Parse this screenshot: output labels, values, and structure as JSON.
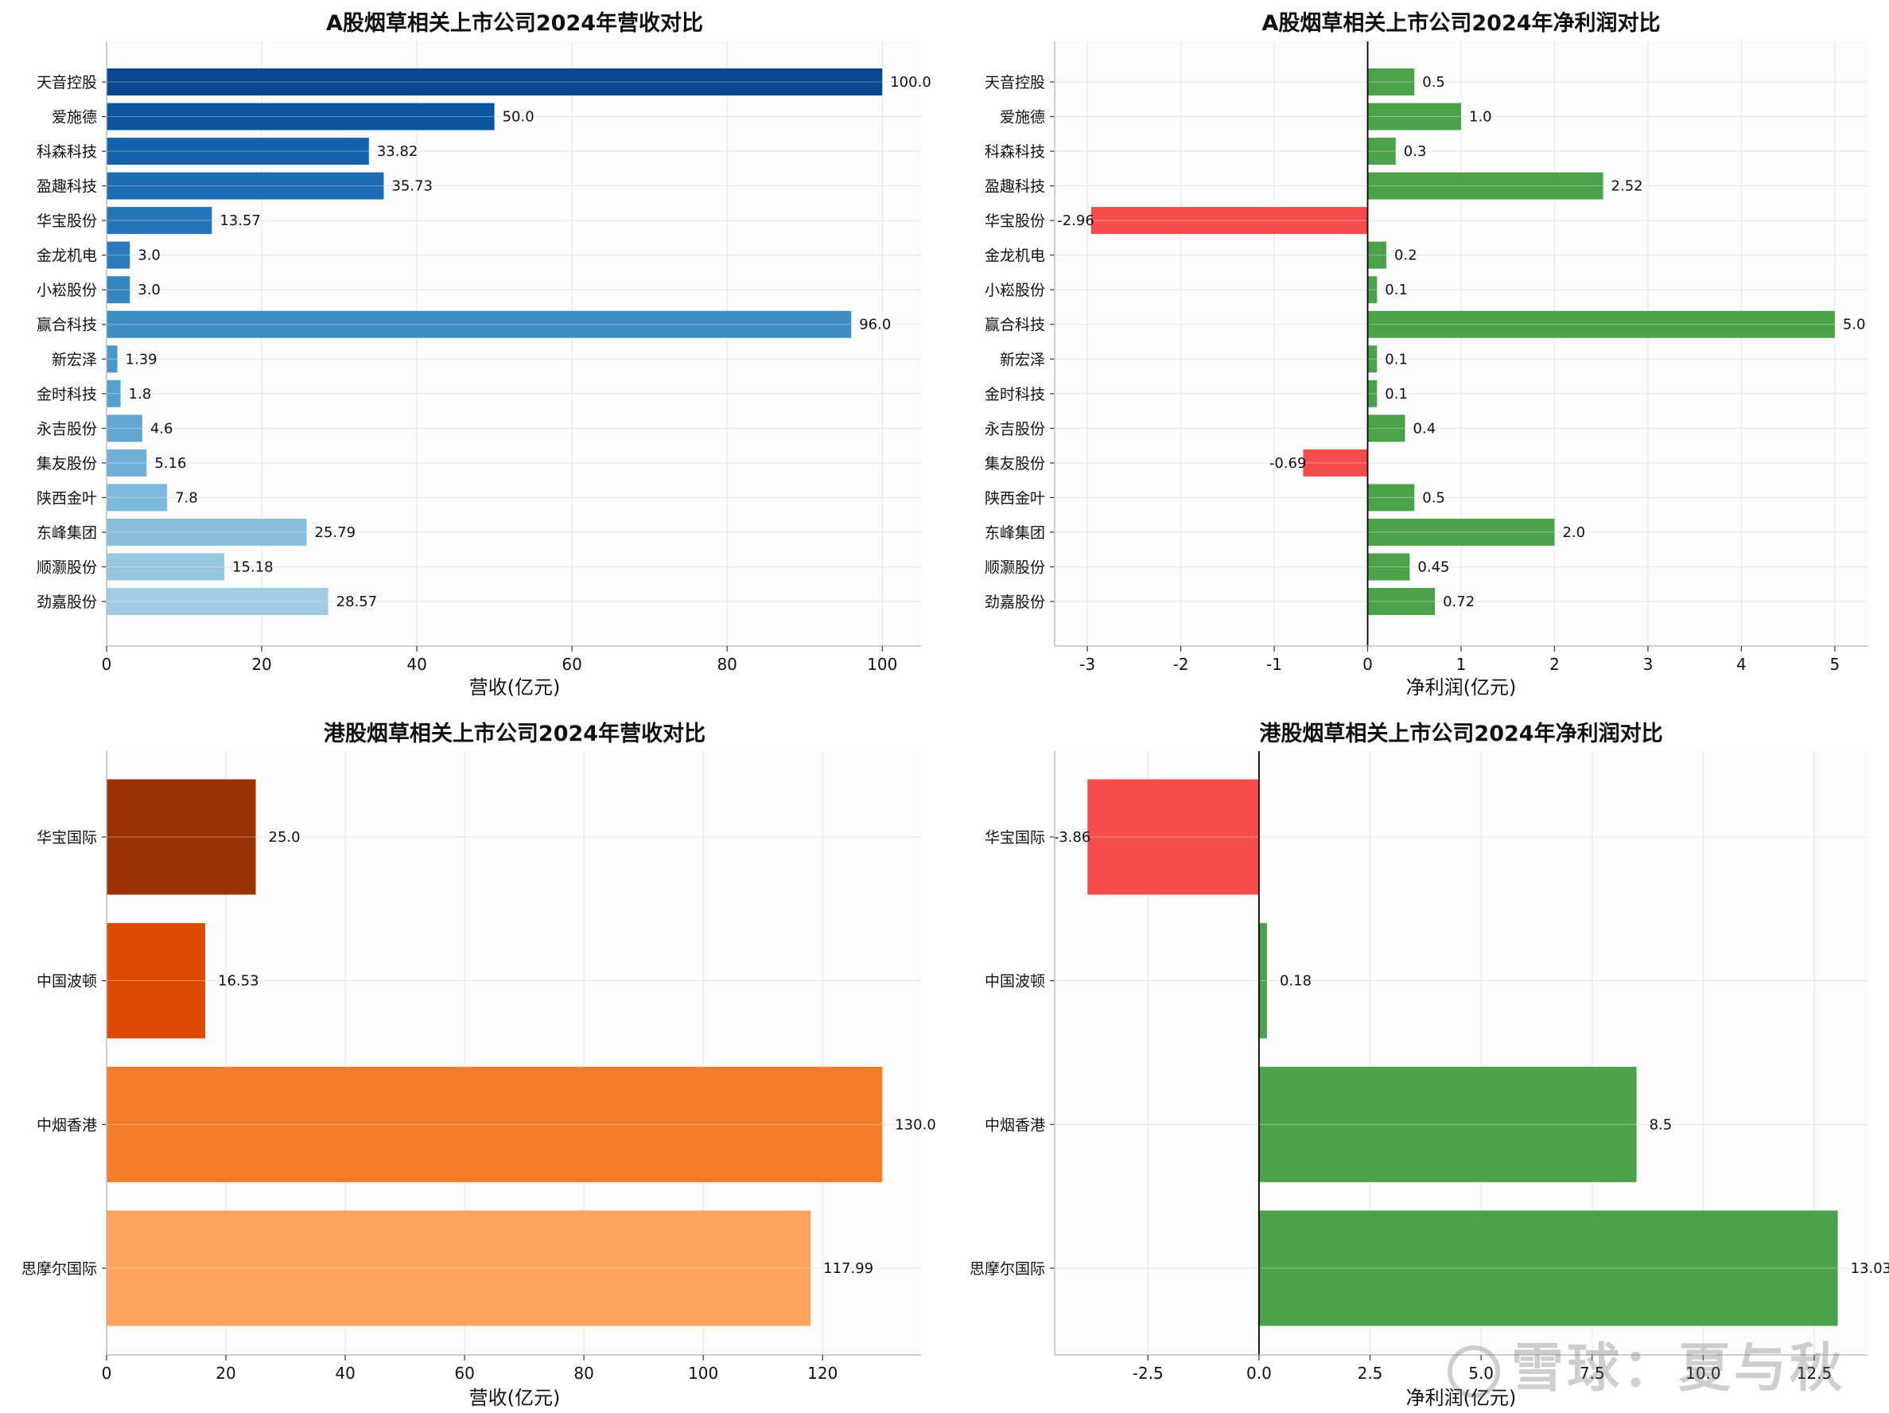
{
  "chart_data": [
    {
      "type": "bar",
      "orientation": "horizontal",
      "title": "A股烟草相关上市公司2024年营收对比",
      "xlabel": "营收(亿元)",
      "categories": [
        "天音控股",
        "爱施德",
        "科森科技",
        "盈趣科技",
        "华宝股份",
        "金龙机电",
        "小崧股份",
        "赢合科技",
        "新宏泽",
        "金时科技",
        "永吉股份",
        "集友股份",
        "陕西金叶",
        "东峰集团",
        "顺灏股份",
        "劲嘉股份"
      ],
      "values": [
        100.0,
        50.0,
        33.82,
        35.73,
        13.57,
        3.0,
        3.0,
        96.0,
        1.39,
        1.8,
        4.6,
        5.16,
        7.8,
        25.79,
        15.18,
        28.57
      ],
      "value_labels": [
        "100.0",
        "50.0",
        "33.82",
        "35.73",
        "13.57",
        "3.0",
        "3.0",
        "96.0",
        "1.39",
        "1.8",
        "4.6",
        "5.16",
        "7.8",
        "25.79",
        "15.18",
        "28.57"
      ],
      "colors": [
        "#08468e",
        "#0c56a0",
        "#1462ab",
        "#1c6cb2",
        "#2373b6",
        "#2b7bba",
        "#3585bf",
        "#3f8ec3",
        "#4a98c9",
        "#56a0ce",
        "#63a8d3",
        "#70b0d7",
        "#7eb8da",
        "#89bfdd",
        "#96c6e0",
        "#a0cbe2"
      ],
      "xlim": [
        0,
        105
      ],
      "xticks": [
        0,
        20,
        40,
        60,
        80,
        100
      ],
      "xtick_labels": [
        "0",
        "20",
        "40",
        "60",
        "80",
        "100"
      ],
      "grid": true
    },
    {
      "type": "bar",
      "orientation": "horizontal",
      "title": "A股烟草相关上市公司2024年净利润对比",
      "xlabel": "净利润(亿元)",
      "categories": [
        "天音控股",
        "爱施德",
        "科森科技",
        "盈趣科技",
        "华宝股份",
        "金龙机电",
        "小崧股份",
        "赢合科技",
        "新宏泽",
        "金时科技",
        "永吉股份",
        "集友股份",
        "陕西金叶",
        "东峰集团",
        "顺灏股份",
        "劲嘉股份"
      ],
      "values": [
        0.5,
        1.0,
        0.3,
        2.52,
        -2.96,
        0.2,
        0.1,
        5.0,
        0.1,
        0.1,
        0.4,
        -0.69,
        0.5,
        2.0,
        0.45,
        0.72
      ],
      "value_labels": [
        "0.5",
        "1.0",
        "0.3",
        "2.52",
        "-2.96",
        "0.2",
        "0.1",
        "5.0",
        "0.1",
        "0.1",
        "0.4",
        "-0.69",
        "0.5",
        "2.0",
        "0.45",
        "0.72"
      ],
      "positive_color": "#4ba24b",
      "negative_color": "#f44b4b",
      "xlim": [
        -3.35,
        5.35
      ],
      "xticks": [
        -3,
        -2,
        -1,
        0,
        1,
        2,
        3,
        4,
        5
      ],
      "xtick_labels": [
        "-3",
        "-2",
        "-1",
        "0",
        "1",
        "2",
        "3",
        "4",
        "5"
      ],
      "grid": true
    },
    {
      "type": "bar",
      "orientation": "horizontal",
      "title": "港股烟草相关上市公司2024年营收对比",
      "xlabel": "营收(亿元)",
      "categories": [
        "华宝国际",
        "中国波顿",
        "中烟香港",
        "思摩尔国际"
      ],
      "values": [
        25.0,
        16.53,
        130.0,
        117.99
      ],
      "value_labels": [
        "25.0",
        "16.53",
        "130.0",
        "117.99"
      ],
      "colors": [
        "#9b3203",
        "#dc4a03",
        "#f47b28",
        "#fca35e"
      ],
      "xlim": [
        0,
        136.5
      ],
      "xticks": [
        0,
        20,
        40,
        60,
        80,
        100,
        120
      ],
      "xtick_labels": [
        "0",
        "20",
        "40",
        "60",
        "80",
        "100",
        "120"
      ],
      "grid": true
    },
    {
      "type": "bar",
      "orientation": "horizontal",
      "title": "港股烟草相关上市公司2024年净利润对比",
      "xlabel": "净利润(亿元)",
      "categories": [
        "华宝国际",
        "中国波顿",
        "中烟香港",
        "思摩尔国际"
      ],
      "values": [
        -3.86,
        0.18,
        8.5,
        13.03
      ],
      "value_labels": [
        "-3.86",
        "0.18",
        "8.5",
        "13.03"
      ],
      "positive_color": "#4ba24b",
      "negative_color": "#f44b4b",
      "xlim": [
        -4.6,
        13.7
      ],
      "xticks": [
        -2.5,
        0.0,
        2.5,
        5.0,
        7.5,
        10.0,
        12.5
      ],
      "xtick_labels": [
        "-2.5",
        "0.0",
        "2.5",
        "5.0",
        "7.5",
        "10.0",
        "12.5"
      ],
      "grid": true
    }
  ],
  "watermark": {
    "text": "雪球：夏与秋"
  }
}
